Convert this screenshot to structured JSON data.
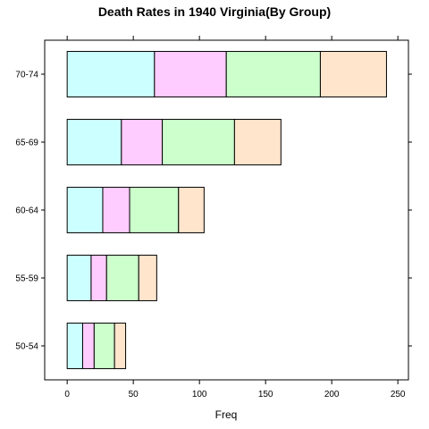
{
  "chart_data": {
    "type": "bar",
    "orientation": "horizontal",
    "stacked": true,
    "title": "Death Rates in 1940 Virginia(By Group)",
    "xlabel": "Freq",
    "ylabel": "",
    "categories": [
      "50-54",
      "55-59",
      "60-64",
      "65-69",
      "70-74"
    ],
    "series": [
      {
        "values": [
          11.7,
          18.1,
          26.9,
          41.0,
          66.0
        ],
        "color": "#ccffff"
      },
      {
        "values": [
          8.7,
          11.7,
          20.3,
          30.9,
          54.3
        ],
        "color": "#ffccff"
      },
      {
        "values": [
          15.4,
          24.3,
          37.0,
          54.6,
          71.1
        ],
        "color": "#ccffcc"
      },
      {
        "values": [
          8.4,
          13.6,
          19.3,
          35.1,
          50.0
        ],
        "color": "#ffe5cc"
      }
    ],
    "xlim": [
      -17,
      258
    ],
    "xticks": [
      0,
      50,
      100,
      150,
      200,
      250
    ],
    "grid": false,
    "legend": "none"
  }
}
